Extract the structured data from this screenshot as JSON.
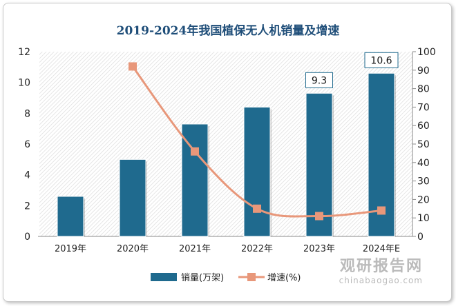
{
  "chart_data": {
    "type": "bar+line",
    "title": "2019-2024年我国植保无人机销量及增速",
    "categories": [
      "2019年",
      "2020年",
      "2021年",
      "2022年",
      "2023年",
      "2024年E"
    ],
    "series": [
      {
        "name": "销量(万架)",
        "type": "bar",
        "axis": "left",
        "values": [
          2.6,
          5.0,
          7.3,
          8.4,
          9.3,
          10.6
        ],
        "color": "#1f6a8e",
        "data_labels": {
          "4": "9.3",
          "5": "10.6"
        }
      },
      {
        "name": "增速(%)",
        "type": "line",
        "axis": "right",
        "values": [
          null,
          92,
          46,
          15,
          11,
          14
        ],
        "color": "#e8977a"
      }
    ],
    "y_left": {
      "range": [
        0,
        12
      ],
      "ticks": [
        0,
        2,
        4,
        6,
        8,
        10,
        12
      ]
    },
    "y_right": {
      "range": [
        0,
        100
      ],
      "ticks": [
        0,
        10,
        20,
        30,
        40,
        50,
        60,
        70,
        80,
        90,
        100
      ]
    },
    "legend": "bottom",
    "grid": false
  },
  "watermark": {
    "cn": "观研报告网",
    "en": "chinabaogao.com"
  }
}
